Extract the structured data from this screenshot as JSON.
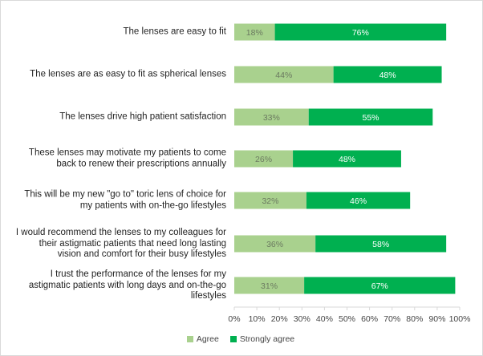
{
  "chart_data": {
    "type": "bar",
    "orientation": "horizontal",
    "stacked": true,
    "categories": [
      "The lenses are easy to fit",
      "The lenses are as easy to fit as spherical lenses",
      "The lenses drive high patient satisfaction",
      "These lenses may motivate my patients to come back to renew their prescriptions annually",
      "This will be my new \"go to\" toric lens of choice for my patients with on-the-go lifestyles",
      "I would recommend the lenses to my colleagues for their astigmatic patients that need long lasting vision and comfort for their busy lifestyles",
      "I trust the performance of the lenses for my astigmatic patients with long days and on-the-go lifestyles"
    ],
    "category_lines": [
      [
        "The lenses are easy to fit"
      ],
      [
        "The lenses are as easy to fit as spherical lenses"
      ],
      [
        "The lenses drive high patient satisfaction"
      ],
      [
        "These lenses may motivate my patients to come",
        "back to renew their prescriptions annually"
      ],
      [
        "This will be my new \"go to\" toric lens of choice for",
        "my patients with on-the-go lifestyles"
      ],
      [
        "I would recommend the lenses to my colleagues for",
        "their astigmatic patients that need long lasting",
        "vision and comfort for their busy lifestyles"
      ],
      [
        "I trust the performance of the lenses for my",
        "astigmatic patients with long days and on-the-go",
        "lifestyles"
      ]
    ],
    "series": [
      {
        "name": "Agree",
        "values": [
          18,
          44,
          33,
          26,
          32,
          36,
          31
        ],
        "color": "#a9d18e"
      },
      {
        "name": "Strongly agree",
        "values": [
          76,
          48,
          55,
          48,
          46,
          58,
          67
        ],
        "color": "#00b050"
      }
    ],
    "value_format": "percent",
    "xlim": [
      0,
      100
    ],
    "x_ticks": [
      "0%",
      "10%",
      "20%",
      "30%",
      "40%",
      "50%",
      "60%",
      "70%",
      "80%",
      "90%",
      "100%"
    ],
    "grid": false,
    "legend_position": "bottom",
    "title": "",
    "xlabel": "",
    "ylabel": ""
  }
}
